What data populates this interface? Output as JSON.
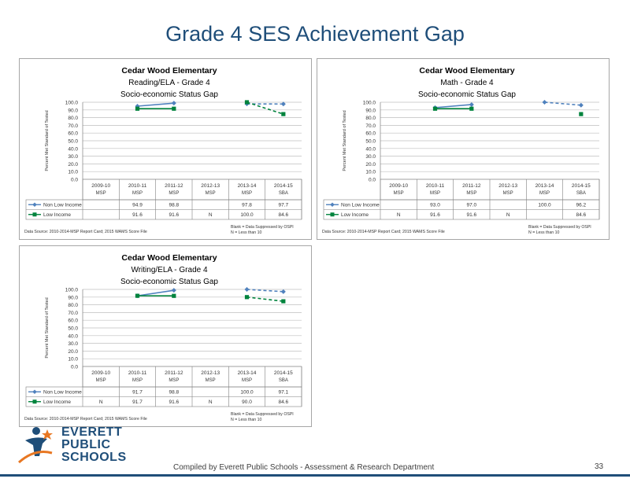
{
  "slide": {
    "title": "Grade 4 SES Achievement Gap",
    "footer": "Compiled  by Everett Public Schools - Assessment & Research Department",
    "page_number": "33",
    "logo_lines": [
      "EVERETT",
      "PUBLIC",
      "SCHOOLS"
    ]
  },
  "colors": {
    "non_low": "#4f81bd",
    "low": "#00833d",
    "title": "#1f4e79"
  },
  "table_row_labels": [
    "Non Low Income",
    "Low Income"
  ],
  "y_ticks": [
    "100.0",
    "90.0",
    "80.0",
    "70.0",
    "60.0",
    "50.0",
    "40.0",
    "30.0",
    "20.0",
    "10.0",
    "0.0"
  ],
  "ylabel": "Percent Met Standard of Tested",
  "chart_data": [
    {
      "type": "line",
      "title_lines": [
        "Cedar Wood Elementary",
        "Reading/ELA - Grade 4",
        "Socio-economic Status Gap"
      ],
      "categories": [
        "2009-10",
        "2010-11",
        "2011-12",
        "2012-13",
        "2013-14",
        "2014-15"
      ],
      "tests": [
        "MSP",
        "MSP",
        "MSP",
        "MSP",
        "MSP",
        "SBA"
      ],
      "ylabel": "Percent Met Standard of Tested",
      "ylim": [
        0,
        100
      ],
      "series": [
        {
          "name": "Non Low Income",
          "values": [
            null,
            94.9,
            98.8,
            null,
            97.8,
            97.7
          ],
          "cells": [
            "",
            "94.9",
            "98.8",
            "",
            "97.8",
            "97.7"
          ]
        },
        {
          "name": "Low Income",
          "values": [
            null,
            91.6,
            91.6,
            null,
            100.0,
            84.6
          ],
          "cells": [
            "",
            "91.6",
            "91.6",
            "N",
            "100.0",
            "84.6"
          ]
        }
      ],
      "source": "Data Source: 2010-2014-MSP Report Card; 2015 WAMS Score File",
      "notes": [
        "Blank = Data Suppressed by OSPI",
        "N = Less than 10"
      ]
    },
    {
      "type": "line",
      "title_lines": [
        "Cedar Wood Elementary",
        "Math - Grade 4",
        "Socio-economic Status Gap"
      ],
      "categories": [
        "2009-10",
        "2010-11",
        "2011-12",
        "2012-13",
        "2013-14",
        "2014-15"
      ],
      "tests": [
        "MSP",
        "MSP",
        "MSP",
        "MSP",
        "MSP",
        "SBA"
      ],
      "ylabel": "Percent Met Standard of Tested",
      "ylim": [
        0,
        100
      ],
      "series": [
        {
          "name": "Non Low Income",
          "values": [
            null,
            93.0,
            97.0,
            null,
            100.0,
            96.2
          ],
          "cells": [
            "",
            "93.0",
            "97.0",
            "",
            "100.0",
            "96.2"
          ]
        },
        {
          "name": "Low Income",
          "values": [
            null,
            91.6,
            91.6,
            null,
            null,
            84.6
          ],
          "cells": [
            "N",
            "91.6",
            "91.6",
            "N",
            "",
            "84.6"
          ]
        }
      ],
      "source": "Data Source: 2010-2014-MSP Report Card; 2015 WAMS Score File",
      "notes": [
        "Blank = Data Suppressed by OSPI",
        "N = Less than 10"
      ]
    },
    {
      "type": "line",
      "title_lines": [
        "Cedar Wood Elementary",
        "Writing/ELA - Grade 4",
        "Socio-economic Status Gap"
      ],
      "categories": [
        "2009-10",
        "2010-11",
        "2011-12",
        "2012-13",
        "2013-14",
        "2014-15"
      ],
      "tests": [
        "MSP",
        "MSP",
        "MSP",
        "MSP",
        "MSP",
        "SBA"
      ],
      "ylabel": "Percent Met Standard of Tested",
      "ylim": [
        0,
        100
      ],
      "series": [
        {
          "name": "Non Low Income",
          "values": [
            null,
            91.7,
            98.8,
            null,
            100.0,
            97.1
          ],
          "cells": [
            "",
            "91.7",
            "98.8",
            "",
            "100.0",
            "97.1"
          ]
        },
        {
          "name": "Low Income",
          "values": [
            null,
            91.7,
            91.6,
            null,
            90.0,
            84.6
          ],
          "cells": [
            "N",
            "91.7",
            "91.6",
            "N",
            "90.0",
            "84.6"
          ]
        }
      ],
      "source": "Data Source: 2010-2014-MSP Report Card; 2015 WAMS Score File",
      "notes": [
        "Blank = Data Suppressed by OSPI",
        "N = Less than 10"
      ]
    }
  ]
}
